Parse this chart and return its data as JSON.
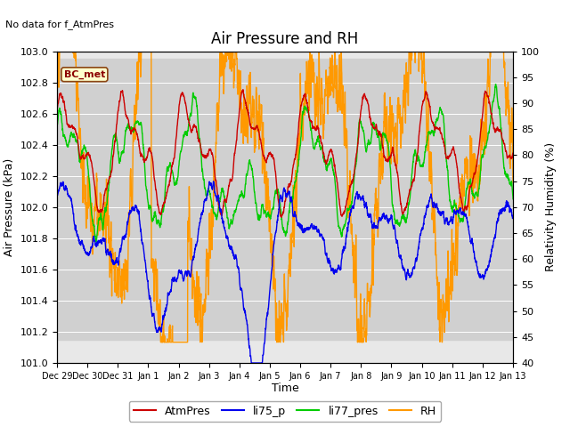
{
  "title": "Air Pressure and RH",
  "no_data_text": "No data for f_AtmPres",
  "xlabel": "Time",
  "ylabel_left": "Air Pressure (kPa)",
  "ylabel_right": "Relativity Humidity (%)",
  "ylim_left": [
    101.0,
    103.0
  ],
  "ylim_right": [
    40,
    100
  ],
  "yticks_left": [
    101.0,
    101.2,
    101.4,
    101.6,
    101.8,
    102.0,
    102.2,
    102.4,
    102.6,
    102.8,
    103.0
  ],
  "yticks_right": [
    40,
    45,
    50,
    55,
    60,
    65,
    70,
    75,
    80,
    85,
    90,
    95,
    100
  ],
  "xtick_labels": [
    "Dec 29",
    "Dec 30",
    "Dec 31",
    "Jan 1",
    "Jan 2",
    "Jan 3",
    "Jan 4",
    "Jan 5",
    "Jan 6",
    "Jan 7",
    "Jan 8",
    "Jan 9",
    "Jan 10",
    "Jan 11",
    "Jan 12",
    "Jan 13"
  ],
  "legend_entries": [
    "AtmPres",
    "li75_p",
    "li77_pres",
    "RH"
  ],
  "legend_colors": [
    "#cc0000",
    "#0000ee",
    "#00cc00",
    "#ff9900"
  ],
  "bc_met_box_color": "#ffffcc",
  "bc_met_text_color": "#8B0000",
  "fig_facecolor": "#ffffff",
  "plot_facecolor": "#e8e8e8",
  "shaded_band": [
    101.15,
    102.95
  ],
  "shaded_color": "#d0d0d0",
  "grid_color": "#ffffff",
  "n_points": 3000,
  "seed": 7
}
